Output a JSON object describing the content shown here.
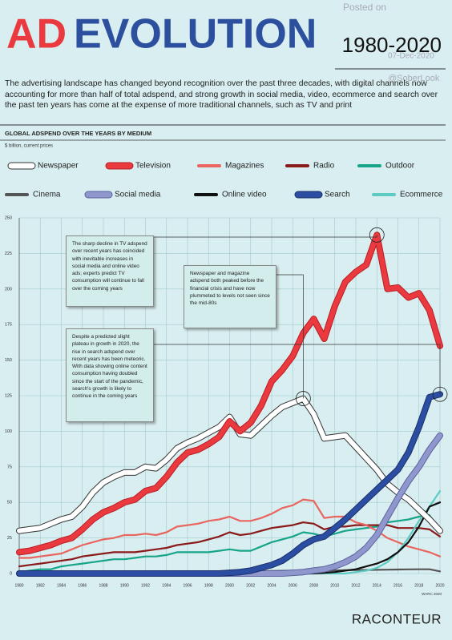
{
  "header": {
    "title_part1": "AD",
    "title_part2": "EVOLUTION",
    "period": "1980-2020",
    "watermark": [
      "Posted on",
      "07-Dec-2020",
      "@SoberLook"
    ],
    "intro": "The advertising landscape has changed beyond recognition over the past three decades, with digital channels now accounting for more than half of total adspend, and strong growth in social media, video, ecommerce and search over the past ten years has come at the expense of more traditional channels, such as TV and print",
    "chart_heading": "GLOBAL ADSPEND OVER THE YEARS BY MEDIUM",
    "units": "$ billion, current prices"
  },
  "chart_data": {
    "type": "line",
    "x": [
      1980,
      1981,
      1982,
      1983,
      1984,
      1985,
      1986,
      1987,
      1988,
      1989,
      1990,
      1991,
      1992,
      1993,
      1994,
      1995,
      1996,
      1997,
      1998,
      1999,
      2000,
      2001,
      2002,
      2003,
      2004,
      2005,
      2006,
      2007,
      2008,
      2009,
      2010,
      2011,
      2012,
      2013,
      2014,
      2015,
      2016,
      2017,
      2018,
      2019,
      2020
    ],
    "xlim": [
      1980,
      2020
    ],
    "xticks": [
      1980,
      1982,
      1984,
      1986,
      1988,
      1990,
      1992,
      1994,
      1996,
      1998,
      2000,
      2002,
      2004,
      2006,
      2008,
      2010,
      2012,
      2014,
      2016,
      2018,
      2020
    ],
    "ylim": [
      0,
      250
    ],
    "yticks": [
      0,
      25,
      50,
      75,
      100,
      125,
      150,
      175,
      200,
      225,
      250
    ],
    "grid": true,
    "series": [
      {
        "name": "Newspaper",
        "color": "#ffffff",
        "outline": "#333333",
        "values": [
          30,
          31,
          32,
          35,
          38,
          40,
          47,
          57,
          64,
          68,
          71,
          71,
          75,
          74,
          80,
          88,
          92,
          95,
          99,
          103,
          110,
          98,
          97,
          104,
          111,
          117,
          120,
          123,
          112,
          95,
          96,
          97,
          89,
          81,
          73,
          63,
          57,
          52,
          45,
          38,
          30
        ]
      },
      {
        "name": "Television",
        "color": "#ea3a3f",
        "outline": "#b81e24",
        "values": [
          15,
          16,
          18,
          20,
          23,
          25,
          31,
          38,
          43,
          46,
          50,
          52,
          58,
          60,
          68,
          78,
          85,
          87,
          91,
          96,
          107,
          100,
          106,
          118,
          135,
          143,
          153,
          169,
          179,
          165,
          188,
          205,
          212,
          217,
          238,
          200,
          201,
          194,
          197,
          185,
          160
        ]
      },
      {
        "name": "Magazines",
        "color": "#e9655f",
        "values": [
          11,
          11,
          12,
          13,
          14,
          17,
          20,
          22,
          24,
          25,
          27,
          27,
          28,
          27,
          29,
          33,
          34,
          35,
          37,
          38,
          40,
          37,
          37,
          39,
          42,
          46,
          48,
          52,
          51,
          39,
          40,
          40,
          36,
          34,
          30,
          25,
          22,
          19,
          17,
          15,
          12
        ]
      },
      {
        "name": "Radio",
        "color": "#8b1a1a",
        "values": [
          5,
          6,
          7,
          8,
          9,
          10,
          12,
          13,
          14,
          15,
          15,
          15,
          16,
          17,
          18,
          20,
          21,
          22,
          24,
          26,
          29,
          27,
          28,
          30,
          32,
          33,
          34,
          36,
          35,
          31,
          33,
          33,
          34,
          34,
          34,
          34,
          32,
          32,
          32,
          31,
          26
        ]
      },
      {
        "name": "Outdoor",
        "color": "#17a589",
        "values": [
          1,
          2,
          3,
          3,
          5,
          6,
          7,
          8,
          9,
          10,
          10,
          11,
          12,
          12,
          13,
          15,
          15,
          15,
          15,
          16,
          17,
          16,
          16,
          19,
          22,
          24,
          26,
          29,
          28,
          26,
          28,
          30,
          31,
          32,
          33,
          36,
          37,
          38,
          40,
          41,
          30
        ]
      },
      {
        "name": "Cinema",
        "color": "#555555",
        "values": [
          0.5,
          0.5,
          0.5,
          0.6,
          0.6,
          0.6,
          0.7,
          0.7,
          0.8,
          0.8,
          0.9,
          0.9,
          1,
          1,
          1,
          1.1,
          1.2,
          1.2,
          1.3,
          1.4,
          1.5,
          1.5,
          1.6,
          1.7,
          1.8,
          1.9,
          2,
          2.1,
          2.1,
          2,
          2.2,
          2.3,
          2.4,
          2.5,
          2.6,
          2.7,
          2.8,
          2.9,
          3,
          3,
          1.5
        ]
      },
      {
        "name": "Social media",
        "color": "#8f97cc",
        "outline": "#5b63a0",
        "values": [
          0,
          0,
          0,
          0,
          0,
          0,
          0,
          0,
          0,
          0,
          0,
          0,
          0,
          0,
          0,
          0,
          0,
          0,
          0,
          0,
          0,
          0,
          0,
          0,
          0,
          0,
          0.5,
          1,
          2,
          3,
          5,
          8,
          12,
          18,
          27,
          40,
          53,
          65,
          75,
          87,
          97
        ]
      },
      {
        "name": "Online video",
        "color": "#111111",
        "values": [
          0,
          0,
          0,
          0,
          0,
          0,
          0,
          0,
          0,
          0,
          0,
          0,
          0,
          0,
          0,
          0,
          0,
          0,
          0,
          0,
          0,
          0,
          0,
          0,
          0,
          0,
          0,
          0,
          0,
          0.5,
          1,
          2,
          3,
          5,
          7,
          10,
          15,
          22,
          33,
          47,
          50
        ]
      },
      {
        "name": "Search",
        "color": "#2b4ea2",
        "outline": "#1a2f6b",
        "values": [
          0,
          0,
          0,
          0,
          0,
          0,
          0,
          0,
          0,
          0,
          0,
          0,
          0,
          0,
          0,
          0,
          0,
          0,
          0,
          0,
          0.5,
          1,
          2,
          4,
          6,
          9,
          14,
          20,
          24,
          26,
          32,
          38,
          45,
          52,
          59,
          66,
          73,
          85,
          103,
          124,
          126
        ]
      },
      {
        "name": "Ecommerce",
        "color": "#5ecbc3",
        "values": [
          0,
          0,
          0,
          0,
          0,
          0,
          0,
          0,
          0,
          0,
          0,
          0,
          0,
          0,
          0,
          0,
          0,
          0,
          0,
          0,
          0,
          0,
          0,
          0,
          0,
          0,
          0,
          0,
          0,
          0,
          0,
          0,
          1,
          2,
          4,
          8,
          15,
          25,
          37,
          47,
          58
        ]
      }
    ],
    "annotations": [
      "The sharp decline in TV adspend over recent years has coincided with inevitable increases in social media and online video ads; experts predict TV consumption will continue to fall over the coming years",
      "Newspaper and magazine adspend both peaked before the financial crisis and have now plummeted to levels not seen since the mid-80s",
      "Despite a predicted slight plateau in growth in 2020, the rise in search adspend over recent years has been meteoric. With data showing online content consumption having doubled since the start of the pandemic, search's growth is likely to continue in the coming years"
    ],
    "source": "WARC 2020"
  },
  "footer": {
    "brand": "RACONTEUR"
  }
}
